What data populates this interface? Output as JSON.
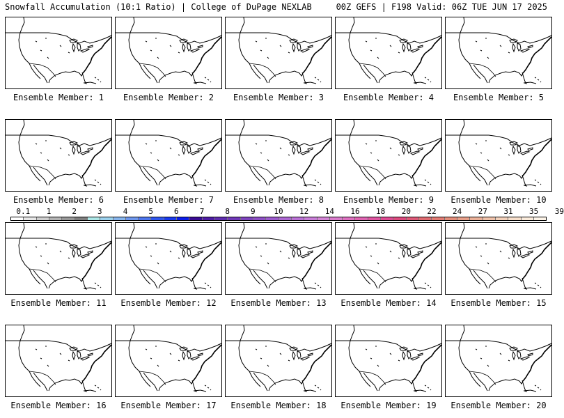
{
  "header": {
    "left": "Snowfall Accumulation (10:1 Ratio) | College of DuPage NEXLAB",
    "right": "00Z GEFS | F198 Valid: 06Z TUE JUN 17 2025"
  },
  "members": [
    {
      "label": "Ensemble Member: 1"
    },
    {
      "label": "Ensemble Member: 2"
    },
    {
      "label": "Ensemble Member: 3"
    },
    {
      "label": "Ensemble Member: 4"
    },
    {
      "label": "Ensemble Member: 5"
    },
    {
      "label": "Ensemble Member: 6"
    },
    {
      "label": "Ensemble Member: 7"
    },
    {
      "label": "Ensemble Member: 8"
    },
    {
      "label": "Ensemble Member: 9"
    },
    {
      "label": "Ensemble Member: 10"
    },
    {
      "label": "Ensemble Member: 11"
    },
    {
      "label": "Ensemble Member: 12"
    },
    {
      "label": "Ensemble Member: 13"
    },
    {
      "label": "Ensemble Member: 14"
    },
    {
      "label": "Ensemble Member: 15"
    },
    {
      "label": "Ensemble Member: 16"
    },
    {
      "label": "Ensemble Member: 17"
    },
    {
      "label": "Ensemble Member: 18"
    },
    {
      "label": "Ensemble Member: 19"
    },
    {
      "label": "Ensemble Member: 20"
    }
  ],
  "colorbar": {
    "labels": [
      "0.1",
      "1",
      "2",
      "3",
      "4",
      "5",
      "6",
      "7",
      "8",
      "9",
      "10",
      "12",
      "14",
      "16",
      "18",
      "20",
      "22",
      "24",
      "27",
      "31",
      "35",
      "39"
    ],
    "colors": [
      "#ffffff",
      "#e8e8e8",
      "#d0d0d0",
      "#b4b4b4",
      "#999999",
      "#7f7f7f",
      "#aee8e8",
      "#9cd2ee",
      "#88b6ee",
      "#6f98ee",
      "#4f77ee",
      "#3157ee",
      "#1a3aee",
      "#0c1cea",
      "#3a0c94",
      "#4e1ca4",
      "#5f2cae",
      "#7038b8",
      "#7f44be",
      "#8e50c6",
      "#9e5cce",
      "#ad68d2",
      "#bb72d6",
      "#c97ed8",
      "#d486d6",
      "#da7ccc",
      "#de70c0",
      "#e064b2",
      "#e056a2",
      "#de4a92",
      "#dc4a7e",
      "#de5a78",
      "#e06c72",
      "#e27c74",
      "#e48e7c",
      "#e8a08a",
      "#ecb29a",
      "#f0c2aa",
      "#f4d2bc",
      "#f8e0cc",
      "#fbecdc",
      "#fdf4e8"
    ]
  }
}
